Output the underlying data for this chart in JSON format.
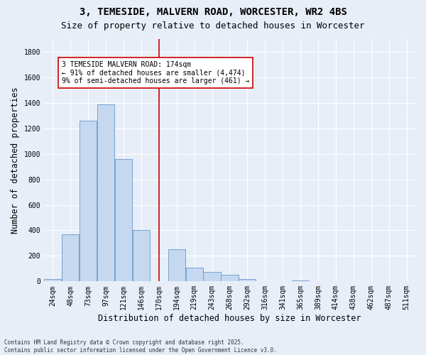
{
  "title": "3, TEMESIDE, MALVERN ROAD, WORCESTER, WR2 4BS",
  "subtitle": "Size of property relative to detached houses in Worcester",
  "xlabel": "Distribution of detached houses by size in Worcester",
  "ylabel": "Number of detached properties",
  "bar_color": "#c5d8f0",
  "bar_edge_color": "#6699cc",
  "background_color": "#e8eef8",
  "grid_color": "#ffffff",
  "categories": [
    "24sqm",
    "48sqm",
    "73sqm",
    "97sqm",
    "121sqm",
    "146sqm",
    "170sqm",
    "194sqm",
    "219sqm",
    "243sqm",
    "268sqm",
    "292sqm",
    "316sqm",
    "341sqm",
    "365sqm",
    "389sqm",
    "414sqm",
    "438sqm",
    "462sqm",
    "487sqm",
    "511sqm"
  ],
  "values": [
    20,
    370,
    1260,
    1390,
    960,
    400,
    0,
    250,
    110,
    75,
    50,
    20,
    0,
    0,
    5,
    0,
    0,
    0,
    0,
    0,
    3
  ],
  "ylim": [
    0,
    1900
  ],
  "yticks": [
    0,
    200,
    400,
    600,
    800,
    1000,
    1200,
    1400,
    1600,
    1800
  ],
  "vline_x": 6,
  "vline_color": "#cc0000",
  "annotation_text": "3 TEMESIDE MALVERN ROAD: 174sqm\n← 91% of detached houses are smaller (4,474)\n9% of semi-detached houses are larger (461) →",
  "annotation_box_color": "#ffffff",
  "annotation_box_edge": "#cc0000",
  "footer": "Contains HM Land Registry data © Crown copyright and database right 2025.\nContains public sector information licensed under the Open Government Licence v3.0.",
  "title_fontsize": 10,
  "subtitle_fontsize": 9,
  "tick_fontsize": 7,
  "label_fontsize": 8.5,
  "annotation_fontsize": 7,
  "footer_fontsize": 5.5
}
